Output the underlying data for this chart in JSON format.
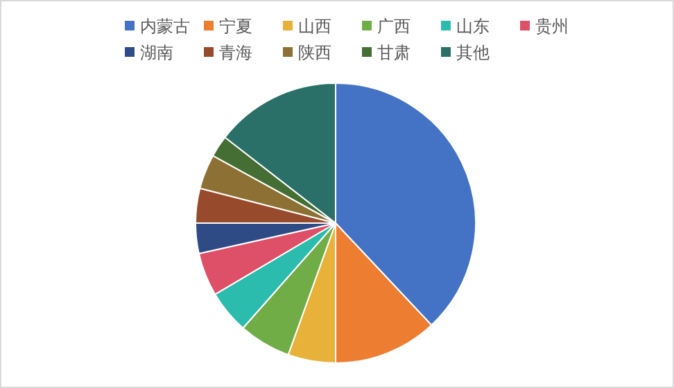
{
  "chart_data": {
    "type": "pie",
    "categories": [
      "内蒙古",
      "宁夏",
      "山西",
      "广西",
      "山东",
      "贵州",
      "湖南",
      "青海",
      "陕西",
      "甘肃",
      "其他"
    ],
    "values": [
      38,
      12,
      5.5,
      6,
      5,
      5,
      3.5,
      4,
      4,
      2.5,
      14.5
    ],
    "colors": [
      "#4472c4",
      "#ed7d31",
      "#e8b13a",
      "#70ad47",
      "#2bbcad",
      "#dd5068",
      "#2f4b86",
      "#984a2c",
      "#8c7034",
      "#456e34",
      "#2b7068"
    ],
    "legend": "top"
  }
}
